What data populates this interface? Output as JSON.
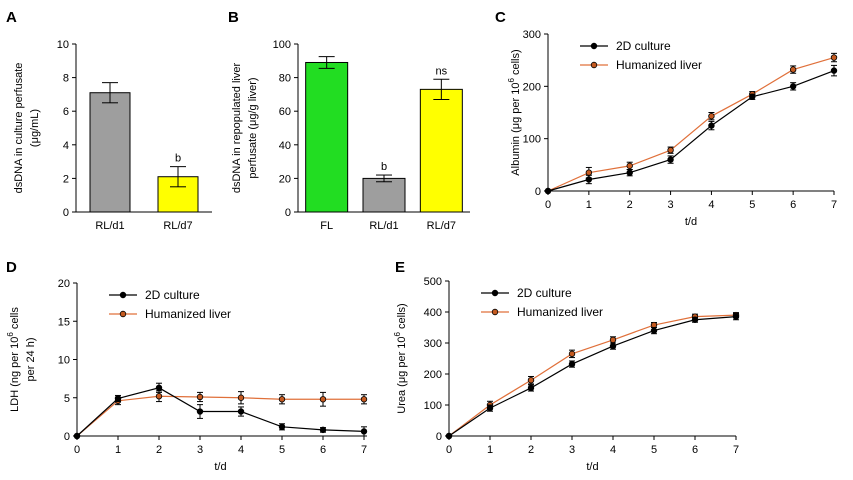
{
  "chart_data": [
    {
      "panel": "A",
      "type": "bar",
      "categories": [
        "RL/d1",
        "RL/d7"
      ],
      "values": [
        7.1,
        2.1
      ],
      "errors": [
        0.6,
        0.6
      ],
      "colors": [
        "#9e9e9e",
        "#ffff00"
      ],
      "annotations": [
        "",
        "b"
      ],
      "xlabel": "",
      "ylabel_lines": [
        "dsDNA in culture perfusate",
        "(μg/mL)"
      ],
      "ylim": [
        0,
        10
      ],
      "yticks": [
        "0",
        "2",
        "4",
        "6",
        "8",
        "10"
      ],
      "grid": false
    },
    {
      "panel": "B",
      "type": "bar",
      "categories": [
        "FL",
        "RL/d1",
        "RL/d7"
      ],
      "values": [
        89,
        20,
        73
      ],
      "errors": [
        3.5,
        2,
        6
      ],
      "colors": [
        "#22dd22",
        "#9e9e9e",
        "#ffff00"
      ],
      "annotations": [
        "",
        "b",
        "ns"
      ],
      "xlabel": "",
      "ylabel_lines": [
        "dsDNA in repopulated liver",
        "perfusate (μg/g liver)"
      ],
      "ylim": [
        0,
        100
      ],
      "yticks": [
        "0",
        "20",
        "40",
        "60",
        "80",
        "100"
      ],
      "grid": false
    },
    {
      "panel": "C",
      "type": "line",
      "x": [
        0,
        1,
        2,
        3,
        4,
        5,
        6,
        7
      ],
      "xticks": [
        "0",
        "1",
        "2",
        "3",
        "4",
        "5",
        "6",
        "7"
      ],
      "series": [
        {
          "name": "2D culture",
          "color": "#000000",
          "values": [
            0,
            22,
            35,
            60,
            125,
            180,
            200,
            230
          ],
          "errors": [
            0,
            8,
            6,
            7,
            8,
            5,
            7,
            10
          ]
        },
        {
          "name": "Humanized liver",
          "color": "#e0703a",
          "values": [
            0,
            35,
            48,
            78,
            143,
            185,
            232,
            255
          ],
          "errors": [
            0,
            10,
            7,
            6,
            7,
            5,
            7,
            8
          ]
        }
      ],
      "xlabel": "t/d",
      "ylabel_text": "Albumin (μg per 10",
      "ylabel_sup": "6",
      "ylabel_tail": " cells)",
      "ylim": [
        0,
        300
      ],
      "yticks": [
        "0",
        "100",
        "200",
        "300"
      ],
      "legend": "top-left",
      "grid": false
    },
    {
      "panel": "D",
      "type": "line",
      "x": [
        0,
        1,
        2,
        3,
        4,
        5,
        6,
        7
      ],
      "xticks": [
        "0",
        "1",
        "2",
        "3",
        "4",
        "5",
        "6",
        "7"
      ],
      "series": [
        {
          "name": "2D culture",
          "color": "#000000",
          "values": [
            0,
            4.9,
            6.3,
            3.2,
            3.2,
            1.2,
            0.8,
            0.6
          ],
          "errors": [
            0,
            0.4,
            0.6,
            0.9,
            0.6,
            0.4,
            0.3,
            0.6
          ]
        },
        {
          "name": "Humanized liver",
          "color": "#e0703a",
          "values": [
            0,
            4.6,
            5.2,
            5.1,
            5.0,
            4.8,
            4.8,
            4.8
          ],
          "errors": [
            0,
            0.5,
            0.7,
            0.6,
            0.8,
            0.6,
            0.9,
            0.6
          ]
        }
      ],
      "xlabel": "t/d",
      "ylabel_lines": [
        "LDH (ng per 10|6| cells",
        "per 24 h)"
      ],
      "ylim": [
        0,
        20
      ],
      "yticks": [
        "0",
        "5",
        "10",
        "15",
        "20"
      ],
      "legend": "top-left",
      "grid": false
    },
    {
      "panel": "E",
      "type": "line",
      "x": [
        0,
        1,
        2,
        3,
        4,
        5,
        6,
        7
      ],
      "xticks": [
        "0",
        "1",
        "2",
        "3",
        "4",
        "5",
        "6",
        "7"
      ],
      "series": [
        {
          "name": "2D culture",
          "color": "#000000",
          "values": [
            0,
            90,
            155,
            232,
            290,
            340,
            375,
            385
          ],
          "errors": [
            0,
            10,
            10,
            10,
            10,
            10,
            8,
            10
          ]
        },
        {
          "name": "Humanized liver",
          "color": "#e0703a",
          "values": [
            0,
            100,
            180,
            265,
            310,
            358,
            385,
            390
          ],
          "errors": [
            0,
            12,
            12,
            12,
            10,
            8,
            8,
            8
          ]
        }
      ],
      "xlabel": "t/d",
      "ylabel_text": "Urea (μg per 10",
      "ylabel_sup": "6",
      "ylabel_tail": " cells)",
      "ylim": [
        0,
        500
      ],
      "yticks": [
        "0",
        "100",
        "200",
        "300",
        "400",
        "500"
      ],
      "legend": "top-left",
      "grid": false
    }
  ]
}
